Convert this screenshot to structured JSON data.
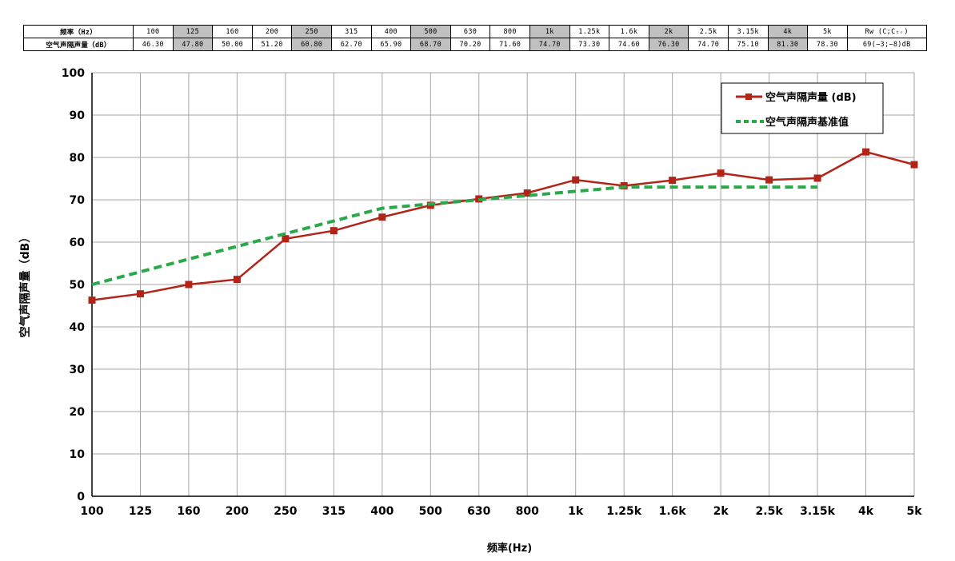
{
  "table": {
    "header_label": "频率（Hz）",
    "value_label": "空气声隔声量（dB）",
    "frequencies": [
      "100",
      "125",
      "160",
      "200",
      "250",
      "315",
      "400",
      "500",
      "630",
      "800",
      "1k",
      "1.25k",
      "1.6k",
      "2k",
      "2.5k",
      "3.15k",
      "4k",
      "5k"
    ],
    "values": [
      "46.30",
      "47.80",
      "50.00",
      "51.20",
      "60.80",
      "62.70",
      "65.90",
      "68.70",
      "70.20",
      "71.60",
      "74.70",
      "73.30",
      "74.60",
      "76.30",
      "74.70",
      "75.10",
      "81.30",
      "78.30"
    ],
    "rw_label": "Rw (C;Cₜᵣ)",
    "rw_value": "69(−3;−8)dB"
  },
  "chart_data": {
    "type": "line",
    "x": [
      "100",
      "125",
      "160",
      "200",
      "250",
      "315",
      "400",
      "500",
      "630",
      "800",
      "1k",
      "1.25k",
      "1.6k",
      "2k",
      "2.5k",
      "3.15k",
      "4k",
      "5k"
    ],
    "series": [
      {
        "name": "空气声隔声量 (dB)",
        "color": "#b22418",
        "style": "solid-square-markers",
        "values": [
          46.3,
          47.8,
          50.0,
          51.2,
          60.8,
          62.7,
          65.9,
          68.7,
          70.2,
          71.6,
          74.7,
          73.3,
          74.6,
          76.3,
          74.7,
          75.1,
          81.3,
          78.3
        ]
      },
      {
        "name": "空气声隔声基准值",
        "color": "#2aa84a",
        "style": "dashed",
        "values": [
          50,
          53,
          56,
          59,
          62,
          65,
          68,
          69,
          70,
          71,
          72,
          73,
          73,
          73,
          73,
          73,
          null,
          null
        ]
      }
    ],
    "xlabel": "频率(Hz)",
    "ylabel": "空气声隔声量（dB）",
    "ylim": [
      0,
      100
    ],
    "yticks": [
      0,
      10,
      20,
      30,
      40,
      50,
      60,
      70,
      80,
      90,
      100
    ],
    "grid": true,
    "legend": "top-right"
  }
}
